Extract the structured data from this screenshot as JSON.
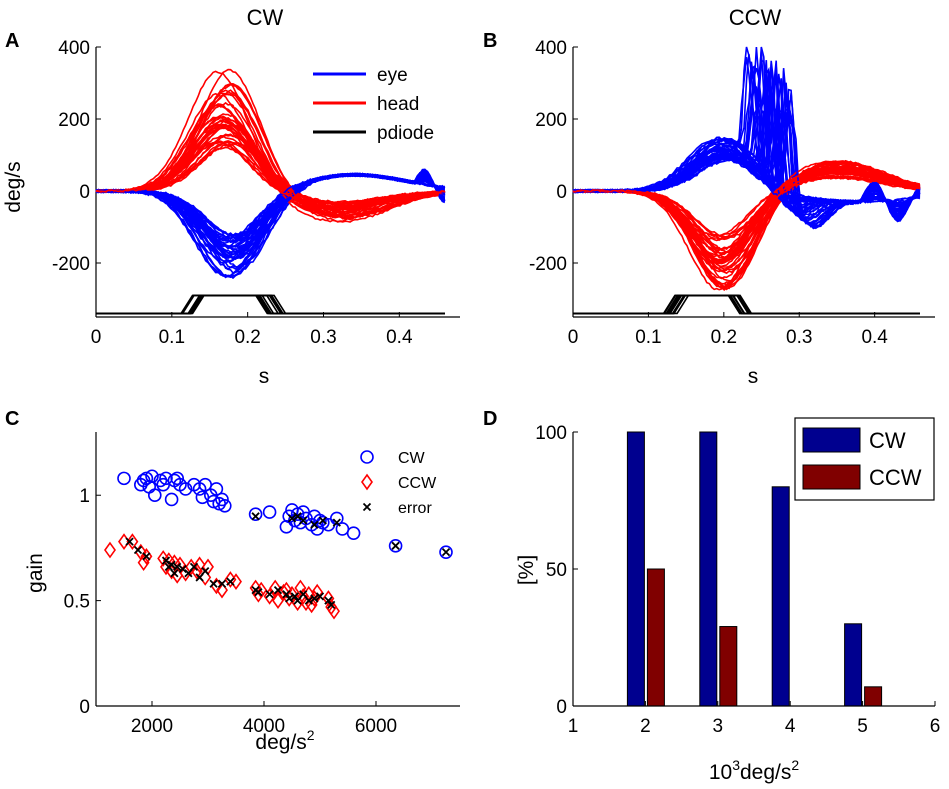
{
  "figure": {
    "panels": {
      "A": {
        "letter": "A",
        "title": "CW",
        "xlabel": "s",
        "ylabel": "deg/s"
      },
      "B": {
        "letter": "B",
        "title": "CCW",
        "xlabel": "s",
        "ylabel": ""
      },
      "C": {
        "letter": "C",
        "xlabel": "deg/s",
        "xlabel_sup": "2",
        "ylabel": "gain"
      },
      "D": {
        "letter": "D",
        "xlabel_prefix": "10",
        "xlabel_sup1": "3",
        "xlabel_mid": "deg/s",
        "xlabel_sup2": "2",
        "ylabel": "[%]"
      }
    },
    "legend_ab": [
      "eye",
      "head",
      "pdiode"
    ],
    "legend_c": [
      "CW",
      "CCW",
      "error"
    ],
    "legend_d": [
      "CW",
      "CCW"
    ]
  },
  "colors": {
    "eye": "#0000ff",
    "head": "#ff0000",
    "pdiode": "#000000",
    "cw_bar": "#00008f",
    "ccw_bar": "#800000"
  },
  "chart_data": [
    {
      "type": "line",
      "panel": "A",
      "title": "CW",
      "xlabel": "s",
      "ylabel": "deg/s",
      "xlim": [
        0,
        0.48
      ],
      "ylim": [
        -350,
        400
      ],
      "xticks": [
        0,
        0.1,
        0.2,
        0.3,
        0.4
      ],
      "xtick_labels": [
        "0",
        "0.1",
        "0.2",
        "0.3",
        "0.4"
      ],
      "yticks": [
        -200,
        0,
        200,
        400
      ],
      "ytick_labels": [
        "-200",
        "0",
        "200",
        "400"
      ],
      "series": [
        {
          "name": "eye",
          "description": "~40 overlaid traces, negative peak -120 to -250 deg/s near 0.18 s, then small positive ~50 deg/s after 0.3 s",
          "peak_range": [
            -250,
            -120
          ],
          "peak_t": 0.18
        },
        {
          "name": "head",
          "description": "~40 overlaid traces, positive peak 120 to 350 deg/s near 0.17 s, undershoot to ~-80 deg/s near 0.3 s",
          "peak_range": [
            120,
            350
          ],
          "peak_t": 0.17
        },
        {
          "name": "pdiode",
          "description": "step pulse from -340 to -290 deg/s units between ~0.13 and ~0.23 s",
          "low": -340,
          "high": -290,
          "on": [
            0.12,
            0.14
          ],
          "off": [
            0.21,
            0.24
          ]
        }
      ]
    },
    {
      "type": "line",
      "panel": "B",
      "title": "CCW",
      "xlabel": "s",
      "ylabel": "",
      "xlim": [
        0,
        0.48
      ],
      "ylim": [
        -350,
        400
      ],
      "xticks": [
        0,
        0.1,
        0.2,
        0.3,
        0.4
      ],
      "xtick_labels": [
        "0",
        "0.1",
        "0.2",
        "0.3",
        "0.4"
      ],
      "yticks": [
        -200,
        0,
        200,
        400
      ],
      "ytick_labels": [
        "-200",
        "0",
        "200",
        "400"
      ],
      "series": [
        {
          "name": "eye",
          "description": "~40 traces, positive peak 90 to 150 deg/s near 0.2 s then saccadic spikes up to ~390 deg/s between 0.22 and 0.3 s",
          "peak_range": [
            90,
            390
          ],
          "peak_t": 0.24
        },
        {
          "name": "head",
          "description": "~40 traces, negative peak -120 to -280 deg/s near 0.2 s, overshoot to ~+90 deg/s near 0.35 s",
          "peak_range": [
            -280,
            -120
          ],
          "peak_t": 0.2
        },
        {
          "name": "pdiode",
          "description": "step pulse from -340 to -290 between ~0.14 and ~0.22 s",
          "low": -340,
          "high": -290,
          "on": [
            0.13,
            0.15
          ],
          "off": [
            0.21,
            0.23
          ]
        }
      ]
    },
    {
      "type": "scatter",
      "panel": "C",
      "xlabel": "deg/s^2",
      "ylabel": "gain",
      "xlim": [
        1000,
        7500
      ],
      "ylim": [
        0,
        1.3
      ],
      "xticks": [
        2000,
        4000,
        6000
      ],
      "xtick_labels": [
        "2000",
        "4000",
        "6000"
      ],
      "yticks": [
        0,
        0.5,
        1
      ],
      "ytick_labels": [
        "0",
        "0.5",
        "1"
      ],
      "series": [
        {
          "name": "CW",
          "marker": "circle",
          "x": [
            1500,
            1800,
            1850,
            1900,
            1950,
            2000,
            2050,
            2150,
            2200,
            2250,
            2350,
            2400,
            2450,
            2500,
            2600,
            2750,
            2850,
            2950,
            3050,
            3100,
            3150,
            3200,
            3250,
            3300,
            2900,
            3850,
            4100,
            4400,
            4450,
            4500,
            4550,
            4600,
            4650,
            4700,
            4750,
            4850,
            4900,
            4950,
            5000,
            5050,
            5150,
            5300,
            5400,
            5600,
            6350,
            7250
          ],
          "y": [
            1.08,
            1.05,
            1.07,
            1.08,
            1.04,
            1.09,
            1.0,
            1.07,
            1.05,
            1.08,
            0.98,
            1.07,
            1.08,
            1.05,
            1.03,
            1.05,
            1.03,
            1.05,
            1.0,
            0.97,
            1.03,
            0.96,
            0.98,
            0.95,
            0.99,
            0.91,
            0.92,
            0.85,
            0.9,
            0.93,
            0.88,
            0.91,
            0.87,
            0.92,
            0.89,
            0.86,
            0.9,
            0.84,
            0.88,
            0.87,
            0.86,
            0.89,
            0.84,
            0.82,
            0.76,
            0.73
          ]
        },
        {
          "name": "CCW",
          "marker": "diamond",
          "x": [
            1250,
            1500,
            1650,
            1800,
            1850,
            1900,
            2200,
            2250,
            2300,
            2350,
            2400,
            2450,
            2500,
            2600,
            2700,
            2800,
            2850,
            2950,
            3000,
            3150,
            3250,
            3400,
            3500,
            3850,
            3900,
            3950,
            4100,
            4200,
            4250,
            4350,
            4400,
            4450,
            4500,
            4600,
            4650,
            4700,
            4750,
            4800,
            4850,
            4900,
            4950,
            5150,
            5200,
            5250
          ],
          "y": [
            0.74,
            0.78,
            0.78,
            0.73,
            0.68,
            0.71,
            0.7,
            0.66,
            0.69,
            0.64,
            0.68,
            0.62,
            0.67,
            0.63,
            0.66,
            0.64,
            0.67,
            0.61,
            0.66,
            0.57,
            0.55,
            0.6,
            0.59,
            0.56,
            0.53,
            0.55,
            0.52,
            0.56,
            0.5,
            0.54,
            0.55,
            0.51,
            0.53,
            0.49,
            0.56,
            0.52,
            0.49,
            0.53,
            0.48,
            0.51,
            0.54,
            0.51,
            0.47,
            0.45
          ]
        },
        {
          "name": "error",
          "marker": "x",
          "x": [
            1600,
            1750,
            1900,
            2250,
            2300,
            2350,
            2400,
            2450,
            2550,
            2650,
            2750,
            2850,
            2950,
            3100,
            3250,
            3400,
            3850,
            3900,
            4100,
            4250,
            4400,
            4450,
            4550,
            4600,
            4700,
            4800,
            4900,
            5000,
            5150,
            5200,
            3850,
            4500,
            4600,
            4700,
            4900,
            5050,
            5300,
            6350,
            7250
          ],
          "y": [
            0.78,
            0.74,
            0.71,
            0.69,
            0.66,
            0.67,
            0.63,
            0.66,
            0.65,
            0.63,
            0.66,
            0.61,
            0.64,
            0.58,
            0.58,
            0.59,
            0.55,
            0.54,
            0.53,
            0.55,
            0.53,
            0.51,
            0.52,
            0.5,
            0.53,
            0.5,
            0.51,
            0.52,
            0.5,
            0.48,
            0.9,
            0.89,
            0.9,
            0.88,
            0.86,
            0.88,
            0.87,
            0.76,
            0.73
          ]
        }
      ],
      "legend": [
        "CW",
        "CCW",
        "error"
      ]
    },
    {
      "type": "bar",
      "panel": "D",
      "xlabel": "10^3 deg/s^2",
      "ylabel": "[%]",
      "xlim": [
        1,
        6
      ],
      "ylim": [
        0,
        100
      ],
      "xticks": [
        1,
        2,
        3,
        4,
        5,
        6
      ],
      "xtick_labels": [
        "1",
        "2",
        "3",
        "4",
        "5",
        "6"
      ],
      "yticks": [
        0,
        50,
        100
      ],
      "ytick_labels": [
        "0",
        "50",
        "100"
      ],
      "categories": [
        2,
        3,
        4,
        5
      ],
      "series": [
        {
          "name": "CW",
          "values": [
            100,
            100,
            80,
            30
          ]
        },
        {
          "name": "CCW",
          "values": [
            50,
            29,
            0,
            7
          ]
        }
      ],
      "legend": [
        "CW",
        "CCW"
      ]
    }
  ]
}
